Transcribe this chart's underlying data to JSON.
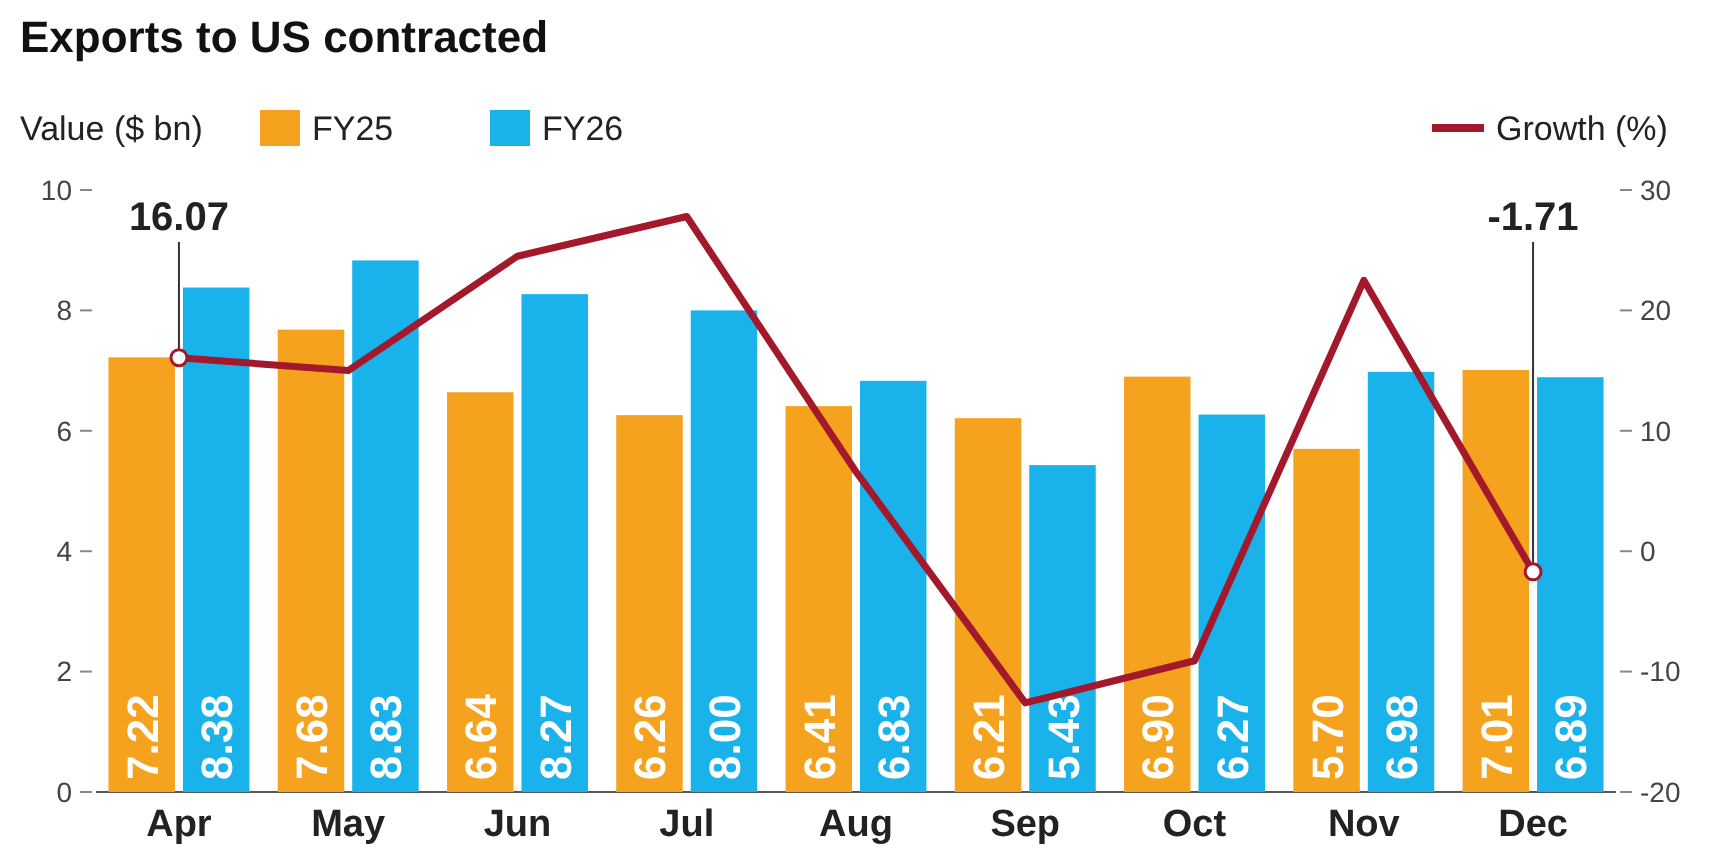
{
  "chart_data": {
    "type": "bar",
    "title": "Exports to US contracted",
    "ylabel": "Value ($ bn)",
    "categories": [
      "Apr",
      "May",
      "Jun",
      "Jul",
      "Aug",
      "Sep",
      "Oct",
      "Nov",
      "Dec"
    ],
    "series": [
      {
        "name": "FY25",
        "color": "#f5a21f",
        "values": [
          7.22,
          7.68,
          6.64,
          6.26,
          6.41,
          6.21,
          6.9,
          5.7,
          7.01
        ],
        "value_labels": [
          "7.22",
          "7.68",
          "6.64",
          "6.26",
          "6.41",
          "6.21",
          "6.90",
          "5.70",
          "7.01"
        ]
      },
      {
        "name": "FY26",
        "color": "#19b2ea",
        "values": [
          8.38,
          8.83,
          8.27,
          8.0,
          6.83,
          5.43,
          6.27,
          6.98,
          6.89
        ],
        "value_labels": [
          "8.38",
          "8.83",
          "8.27",
          "8.00",
          "6.83",
          "5.43",
          "6.27",
          "6.98",
          "6.89"
        ]
      },
      {
        "name": "Growth (%)",
        "type": "line",
        "axis": "y2",
        "color": "#a3182b",
        "values": [
          16.07,
          15.0,
          24.5,
          27.8,
          6.6,
          -12.6,
          -9.1,
          22.5,
          -1.71
        ],
        "value_labels": [
          "16.07",
          null,
          null,
          null,
          null,
          null,
          null,
          null,
          "-1.71"
        ]
      }
    ],
    "ylim": [
      0,
      10
    ],
    "yticks": [
      0,
      2,
      4,
      6,
      8,
      10
    ],
    "y2lim": [
      -20,
      30
    ],
    "y2ticks": [
      -20,
      -10,
      0,
      10,
      20,
      30
    ],
    "legend": "top",
    "marker": "none",
    "line_style": "solid"
  }
}
